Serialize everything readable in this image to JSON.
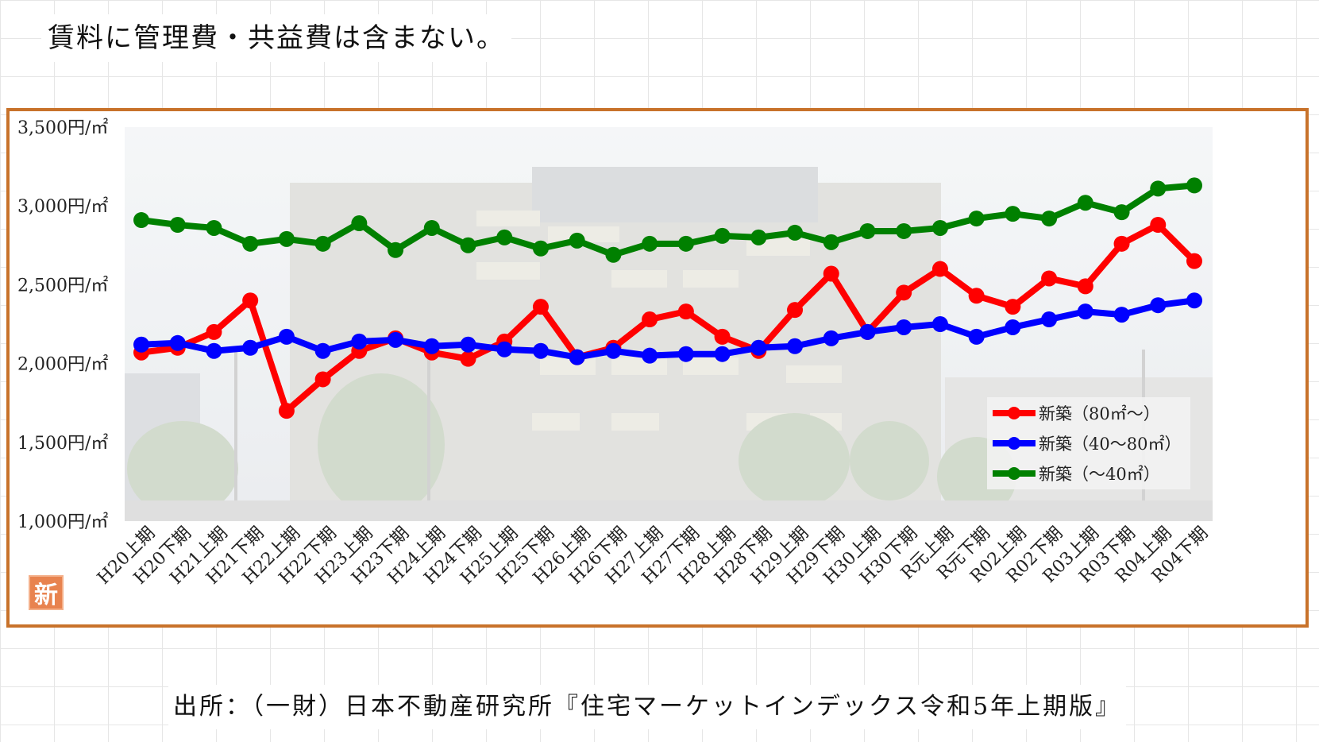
{
  "header": {
    "note": "賃料に管理費・共益費は含まない。"
  },
  "footer": {
    "source": "出所：（一財）日本不動産研究所『住宅マーケットインデックス令和5年上期版』"
  },
  "badge": {
    "label": "新"
  },
  "chart_data": {
    "type": "line",
    "title": "",
    "xlabel": "",
    "ylabel": "",
    "ylim": [
      1000,
      3500
    ],
    "yticks": [
      1000,
      1500,
      2000,
      2500,
      3000,
      3500
    ],
    "ytick_labels": [
      "1,000円/㎡",
      "1,500円/㎡",
      "2,000円/㎡",
      "2,500円/㎡",
      "3,000円/㎡",
      "3,500円/㎡"
    ],
    "legend_position": "bottom-right",
    "background_image": "building-photo",
    "categories": [
      "H20上期",
      "H20下期",
      "H21上期",
      "H21下期",
      "H22上期",
      "H22下期",
      "H23上期",
      "H23下期",
      "H24上期",
      "H24下期",
      "H25上期",
      "H25下期",
      "H26上期",
      "H26下期",
      "H27上期",
      "H27下期",
      "H28上期",
      "H28下期",
      "H29上期",
      "H29下期",
      "H30上期",
      "H30下期",
      "R元上期",
      "R元下期",
      "R02上期",
      "R02下期",
      "R03上期",
      "R03下期",
      "R04上期",
      "R04下期"
    ],
    "series": [
      {
        "name": "新築（80㎡〜）",
        "color": "#ff0000",
        "values": [
          2070,
          2100,
          2200,
          2400,
          1700,
          1900,
          2080,
          2160,
          2070,
          2030,
          2140,
          2360,
          2040,
          2100,
          2280,
          2330,
          2170,
          2080,
          2340,
          2570,
          2200,
          2450,
          2600,
          2430,
          2360,
          2540,
          2490,
          2760,
          2880,
          2650
        ]
      },
      {
        "name": "新築（40〜80㎡）",
        "color": "#0000ff",
        "values": [
          2120,
          2130,
          2080,
          2100,
          2170,
          2080,
          2140,
          2150,
          2110,
          2120,
          2090,
          2080,
          2040,
          2080,
          2050,
          2060,
          2060,
          2100,
          2110,
          2160,
          2200,
          2230,
          2250,
          2170,
          2230,
          2280,
          2330,
          2310,
          2370,
          2400
        ]
      },
      {
        "name": "新築（〜40㎡）",
        "color": "#008000",
        "values": [
          2910,
          2880,
          2860,
          2760,
          2790,
          2760,
          2890,
          2720,
          2860,
          2750,
          2800,
          2730,
          2780,
          2690,
          2760,
          2760,
          2810,
          2800,
          2830,
          2770,
          2840,
          2840,
          2860,
          2920,
          2950,
          2920,
          3020,
          2960,
          3110,
          3130
        ]
      }
    ]
  }
}
